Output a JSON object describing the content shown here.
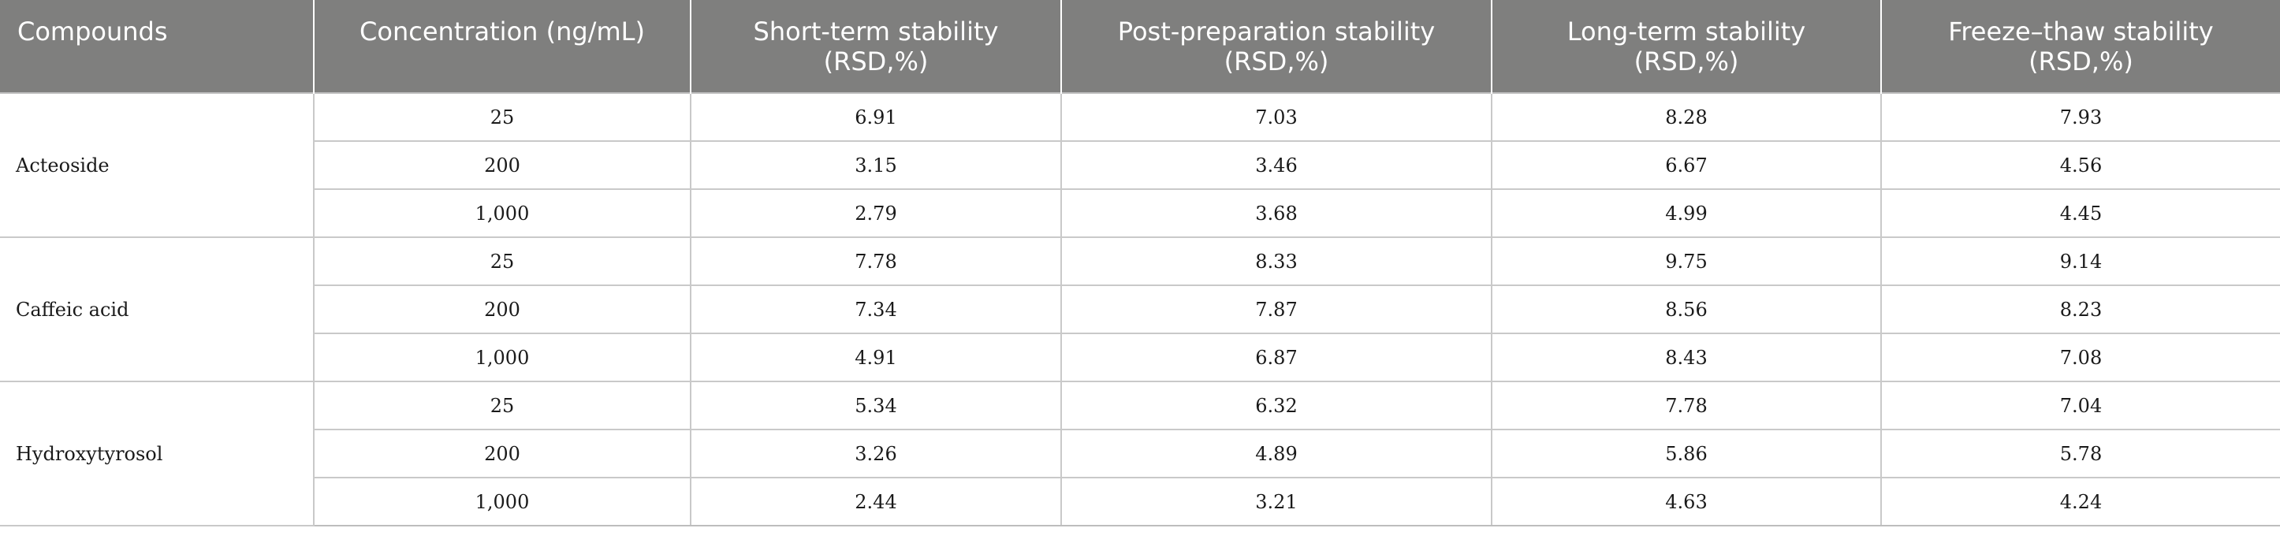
{
  "table": {
    "headers": [
      [
        "Compounds"
      ],
      [
        "Concentration (ng/mL)"
      ],
      [
        "Short-term stability",
        "(RSD,%)"
      ],
      [
        "Post-preparation stability",
        "(RSD,%)"
      ],
      [
        "Long-term stability",
        "(RSD,%)"
      ],
      [
        "Freeze–thaw stability",
        "(RSD,%)"
      ]
    ],
    "groups": [
      {
        "compound": "Acteoside",
        "rows": [
          [
            "25",
            "6.91",
            "7.03",
            "8.28",
            "7.93"
          ],
          [
            "200",
            "3.15",
            "3.46",
            "6.67",
            "4.56"
          ],
          [
            "1,000",
            "2.79",
            "3.68",
            "4.99",
            "4.45"
          ]
        ]
      },
      {
        "compound": "Caffeic acid",
        "rows": [
          [
            "25",
            "7.78",
            "8.33",
            "9.75",
            "9.14"
          ],
          [
            "200",
            "7.34",
            "7.87",
            "8.56",
            "8.23"
          ],
          [
            "1,000",
            "4.91",
            "6.87",
            "8.43",
            "7.08"
          ]
        ]
      },
      {
        "compound": "Hydroxytyrosol",
        "rows": [
          [
            "25",
            "5.34",
            "6.32",
            "7.78",
            "7.04"
          ],
          [
            "200",
            "3.26",
            "4.89",
            "5.86",
            "5.78"
          ],
          [
            "1,000",
            "2.44",
            "3.21",
            "4.63",
            "4.24"
          ]
        ]
      }
    ]
  }
}
